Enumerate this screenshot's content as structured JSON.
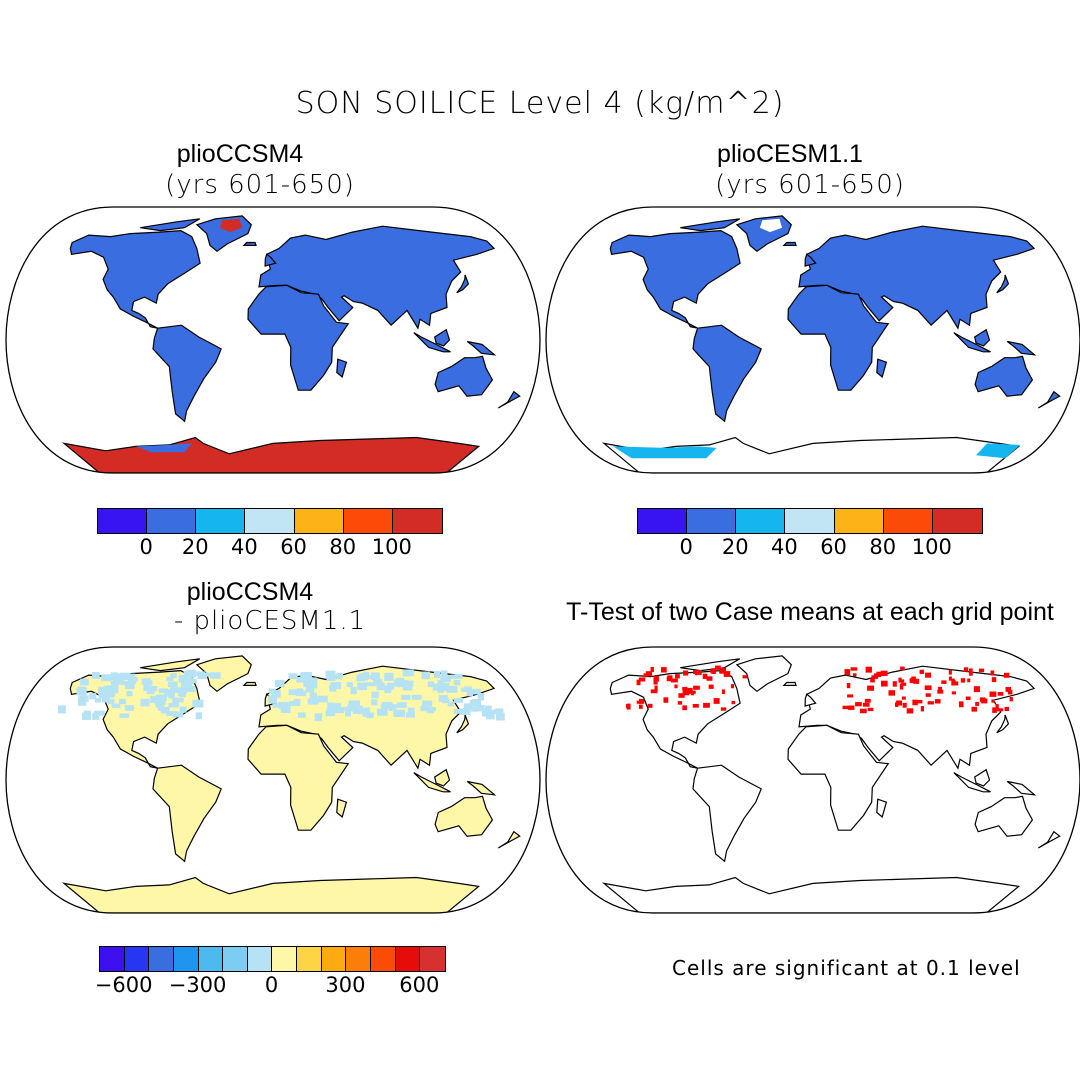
{
  "figure": {
    "title": "SON SOILICE Level 4 (kg/m^2)"
  },
  "panels": [
    {
      "id": "p1",
      "title": "plioCCSM4",
      "subtitle": "(yrs 601-650)"
    },
    {
      "id": "p2",
      "title": "plioCESM1.1",
      "subtitle": "(yrs 601-650)"
    },
    {
      "id": "p3",
      "title": "plioCCSM4",
      "subtitle": "- plioCESM1.1"
    },
    {
      "id": "p4",
      "title": "T-Test of two Case means at each grid point",
      "subtitle": ""
    }
  ],
  "colorbars": {
    "absolute": {
      "colors": [
        "#3814f2",
        "#3a6de0",
        "#15b5f0",
        "#c2e5f5",
        "#fcb317",
        "#fc4a08",
        "#d32c25"
      ],
      "tick_labels": [
        "0",
        "20",
        "40",
        "60",
        "80",
        "100"
      ]
    },
    "difference": {
      "colors": [
        "#3d10f0",
        "#2636f2",
        "#3a6de0",
        "#1e96f0",
        "#4cbaf0",
        "#7dcdf2",
        "#b6e2f5",
        "#fff7a8",
        "#fdd445",
        "#fdab10",
        "#fc7e0a",
        "#fa4c06",
        "#e50c0a",
        "#d63030"
      ],
      "tick_labels": [
        "-600",
        "-300",
        "0",
        "300",
        "600"
      ]
    }
  },
  "legend_note": "Cells are significant at 0.1 level",
  "map_colors": {
    "land_p1": "#3a6de0",
    "antarctica_p1": "#d32c25",
    "land_p2": "#3a6de0",
    "antarctica_p2": "#15b5f0",
    "land_p3": "#fff7a8",
    "ice_p3": "#b6e2f5",
    "sig_p4": "#ff0000"
  }
}
